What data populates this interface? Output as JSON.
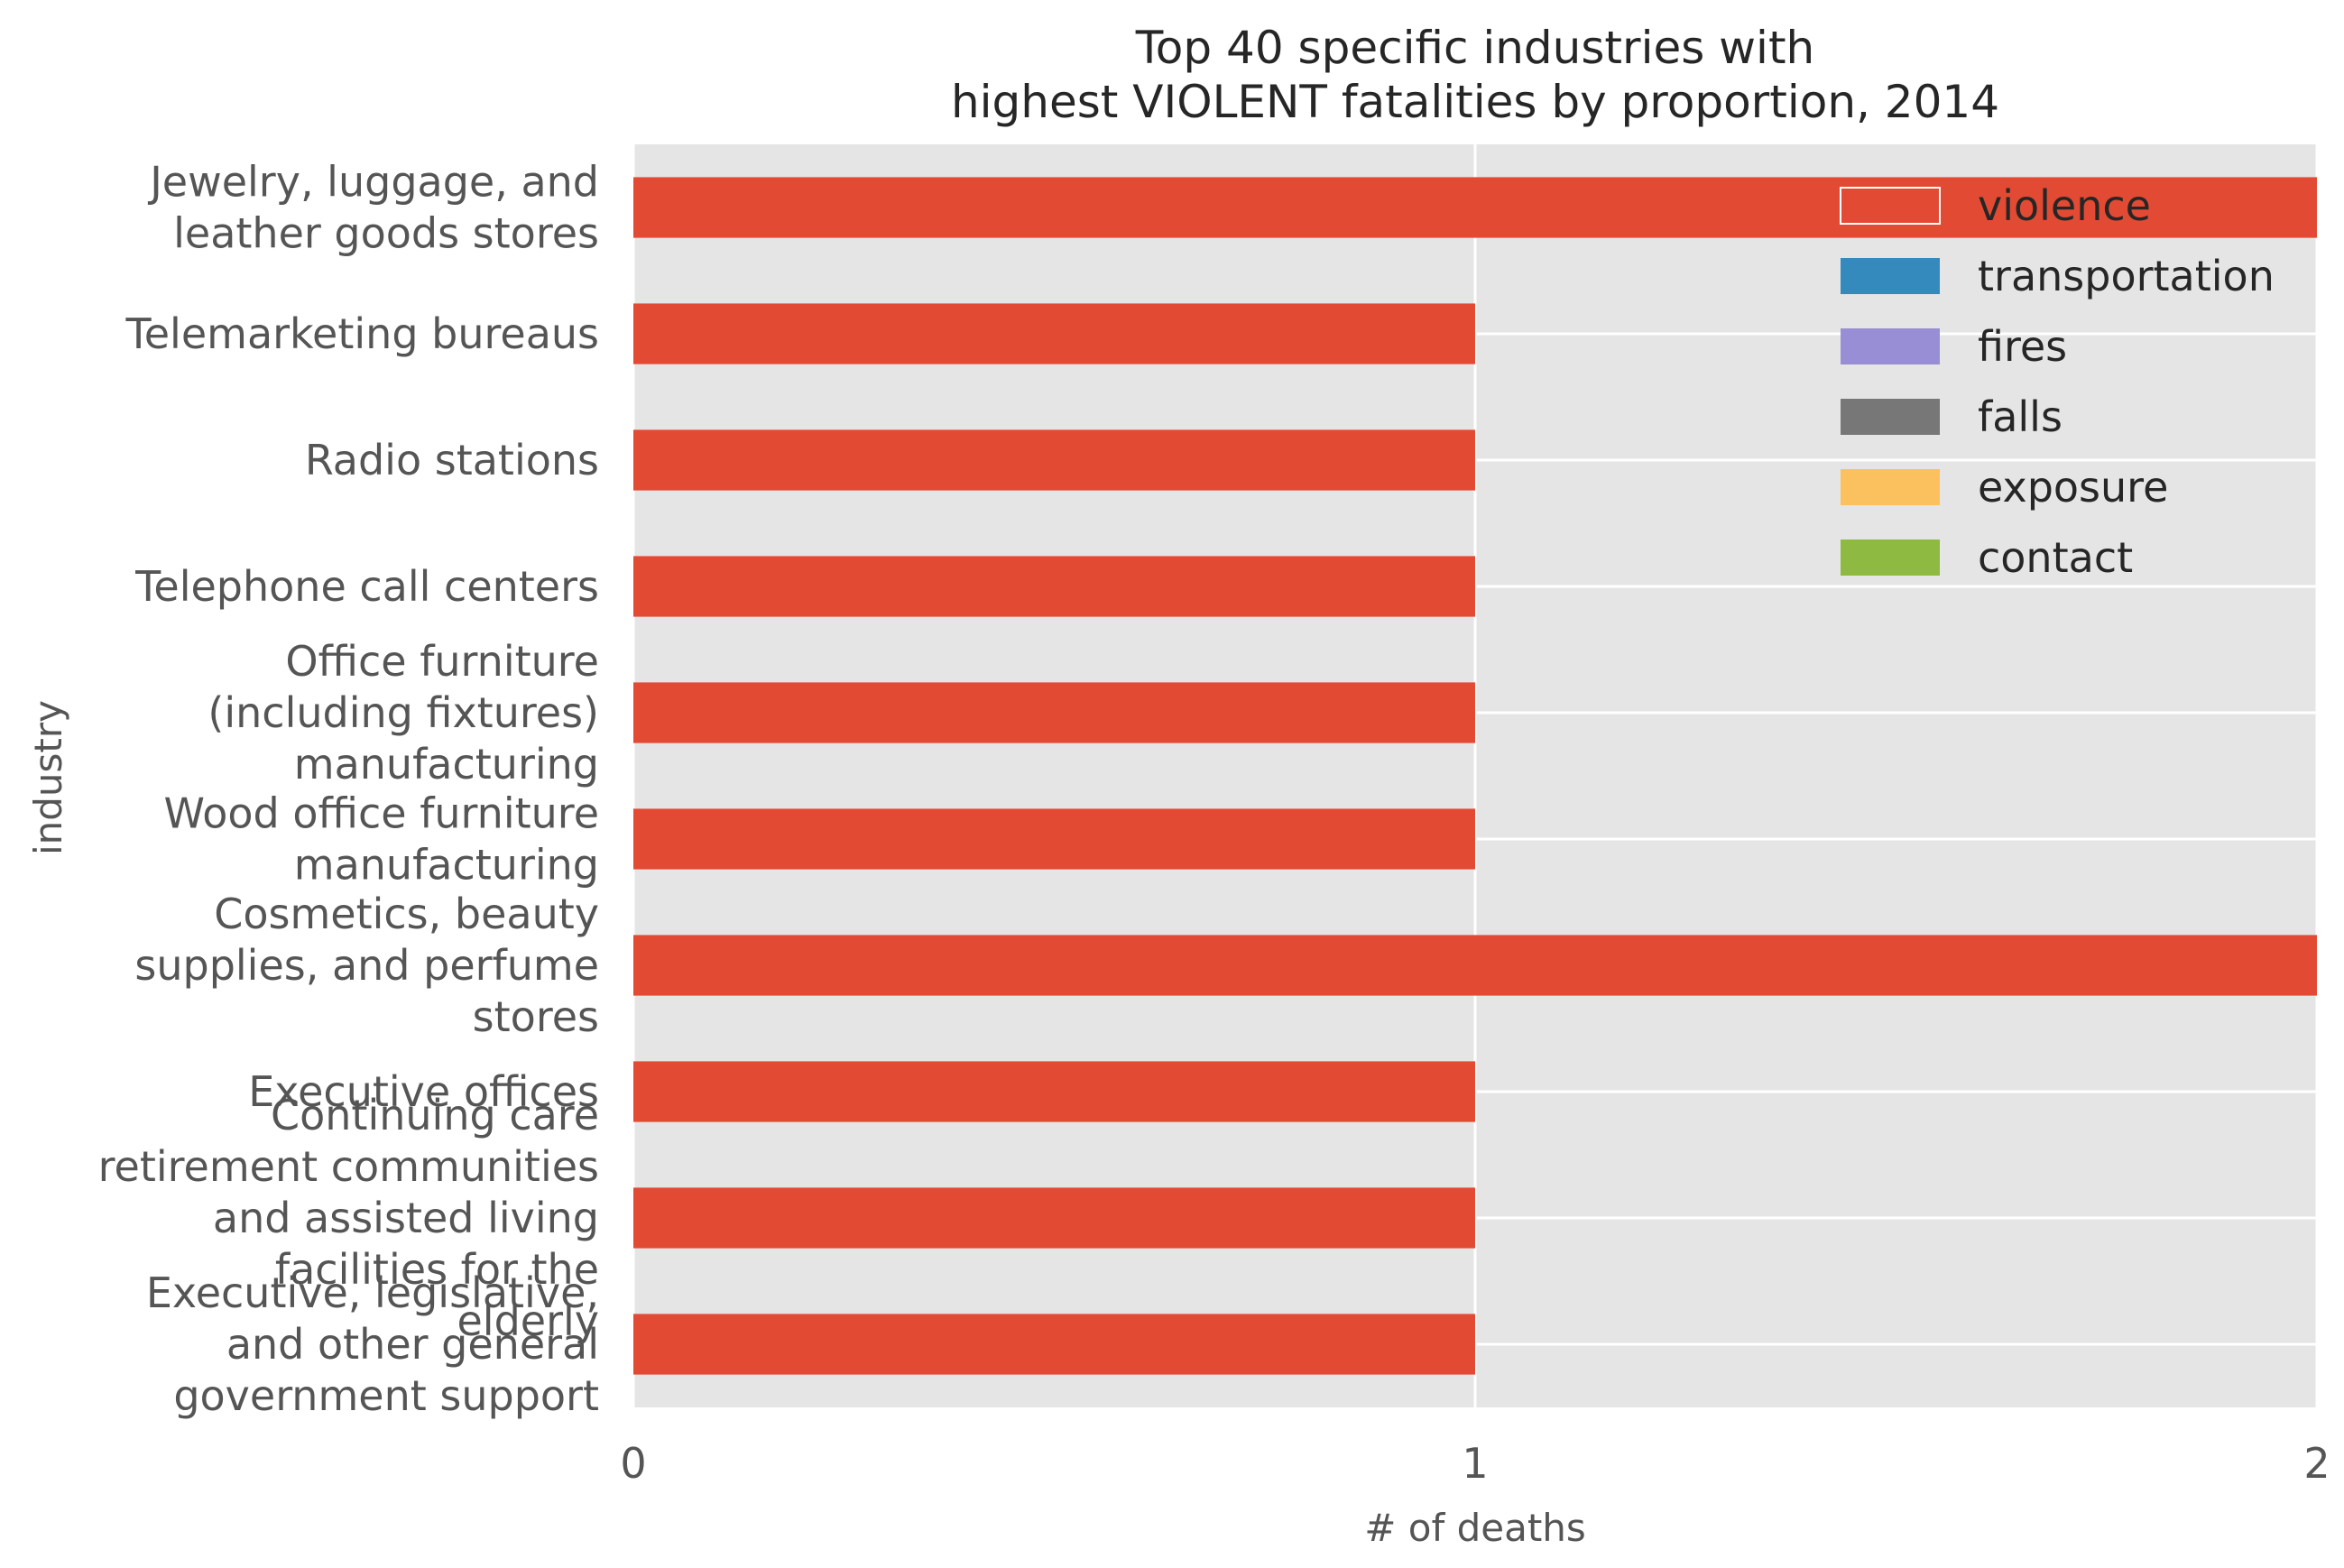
{
  "chart_data": {
    "type": "bar",
    "orientation": "horizontal",
    "stacked": true,
    "title": [
      "Top 40 specific industries with",
      "highest VIOLENT fatalities by proportion, 2014"
    ],
    "xlabel": "# of deaths",
    "ylabel": "industry",
    "xlim": [
      0,
      2
    ],
    "xticks": [
      "0",
      "1",
      "2"
    ],
    "grid": true,
    "legend_position": "top-right",
    "categories": [
      [
        "Jewelry, luggage, and",
        "leather goods stores"
      ],
      [
        "Telemarketing bureaus"
      ],
      [
        "Radio stations"
      ],
      [
        "Telephone call centers"
      ],
      [
        "Office furniture",
        "(including fixtures)",
        "manufacturing"
      ],
      [
        "Wood office furniture",
        "manufacturing"
      ],
      [
        "Cosmetics, beauty",
        "supplies, and perfume",
        "stores"
      ],
      [
        "Executive offices"
      ],
      [
        "Continuing care",
        "retirement communities",
        "and assisted living",
        "facilities for the",
        "elderly"
      ],
      [
        "Executive, legislative,",
        "and other general",
        "government support"
      ]
    ],
    "series": [
      {
        "name": "violence",
        "color": "#E24A33",
        "values": [
          2,
          1,
          1,
          1,
          1,
          1,
          2,
          1,
          1,
          1
        ]
      },
      {
        "name": "transportation",
        "color": "#348ABD",
        "values": [
          0,
          0,
          0,
          0,
          0,
          0,
          0,
          0,
          0,
          0
        ]
      },
      {
        "name": "fires",
        "color": "#988ED5",
        "values": [
          0,
          0,
          0,
          0,
          0,
          0,
          0,
          0,
          0,
          0
        ]
      },
      {
        "name": "falls",
        "color": "#777777",
        "values": [
          0,
          0,
          0,
          0,
          0,
          0,
          0,
          0,
          0,
          0
        ]
      },
      {
        "name": "exposure",
        "color": "#FBC15E",
        "values": [
          0,
          0,
          0,
          0,
          0,
          0,
          0,
          0,
          0,
          0
        ]
      },
      {
        "name": "contact",
        "color": "#8EBA42",
        "values": [
          0,
          0,
          0,
          0,
          0,
          0,
          0,
          0,
          0,
          0
        ]
      }
    ]
  }
}
